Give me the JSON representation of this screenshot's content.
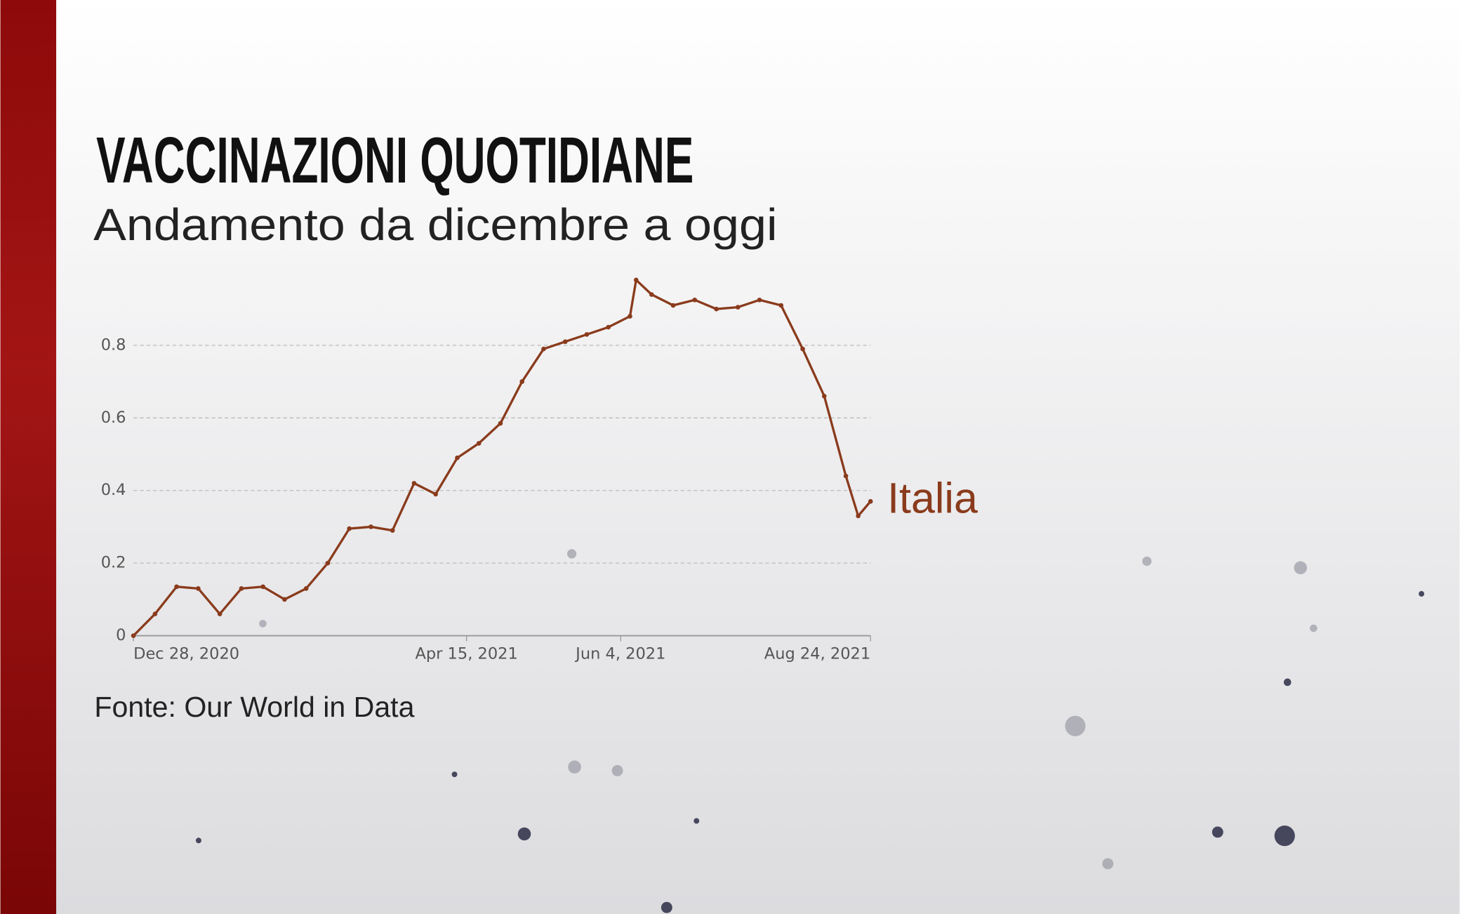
{
  "chart_data": {
    "type": "line",
    "title": "VACCINAZIONI QUOTIDIANE",
    "subtitle": "Andamento da dicembre a oggi",
    "source": "Fonte: Our World in Data",
    "x": [
      "2020-12-28",
      "2021-01-04",
      "2021-01-11",
      "2021-01-18",
      "2021-01-25",
      "2021-02-01",
      "2021-02-08",
      "2021-02-15",
      "2021-02-22",
      "2021-03-01",
      "2021-03-08",
      "2021-03-15",
      "2021-03-22",
      "2021-03-29",
      "2021-04-05",
      "2021-04-12",
      "2021-04-19",
      "2021-04-26",
      "2021-05-03",
      "2021-05-10",
      "2021-05-17",
      "2021-05-24",
      "2021-05-31",
      "2021-06-07",
      "2021-06-09",
      "2021-06-14",
      "2021-06-21",
      "2021-06-28",
      "2021-07-05",
      "2021-07-12",
      "2021-07-19",
      "2021-07-26",
      "2021-08-02",
      "2021-08-09",
      "2021-08-16",
      "2021-08-20",
      "2021-08-24"
    ],
    "series": [
      {
        "name": "Italia",
        "color": "#8a3b1c",
        "values": [
          0,
          0.06,
          0.135,
          0.13,
          0.06,
          0.13,
          0.135,
          0.1,
          0.13,
          0.2,
          0.295,
          0.3,
          0.29,
          0.42,
          0.39,
          0.49,
          0.53,
          0.585,
          0.7,
          0.79,
          0.81,
          0.83,
          0.85,
          0.88,
          0.98,
          0.94,
          0.91,
          0.925,
          0.9,
          0.905,
          0.925,
          0.91,
          0.79,
          0.66,
          0.44,
          0.33,
          0.37
        ]
      }
    ],
    "xlim": [
      "2020-12-28",
      "2021-08-24"
    ],
    "xticks": [
      {
        "value": "2020-12-28",
        "label": "Dec 28, 2020"
      },
      {
        "value": "2021-04-15",
        "label": "Apr 15, 2021"
      },
      {
        "value": "2021-06-04",
        "label": "Jun 4, 2021"
      },
      {
        "value": "2021-08-24",
        "label": "Aug 24, 2021"
      }
    ],
    "ylim": [
      0,
      1
    ],
    "yticks": [
      0,
      0.2,
      0.4,
      0.6,
      0.8
    ],
    "grid": true
  }
}
